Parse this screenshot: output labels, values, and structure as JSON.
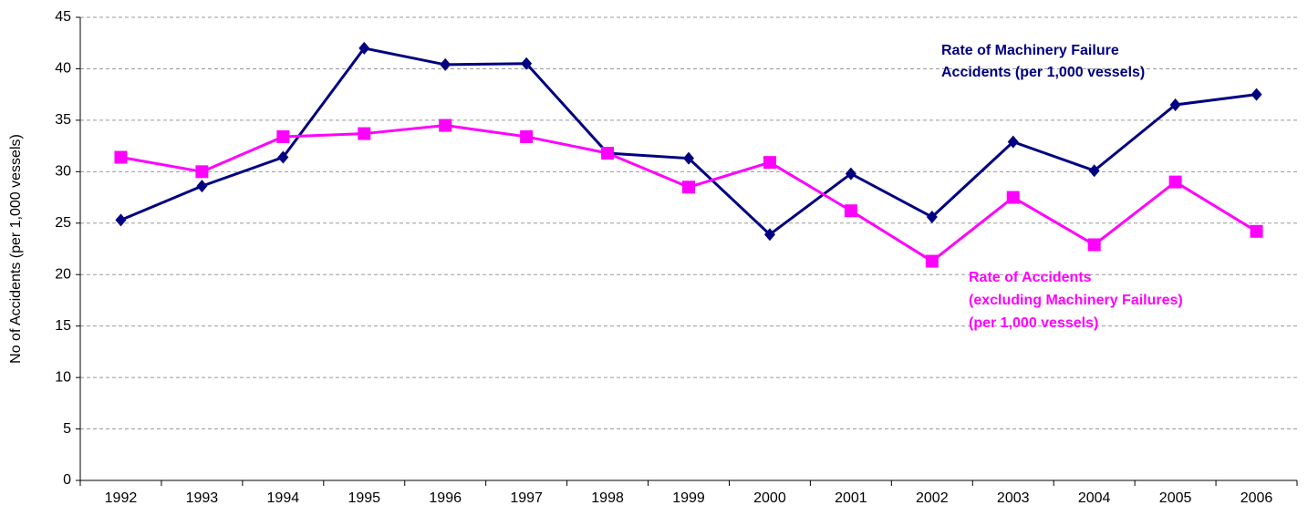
{
  "chart_data": {
    "type": "line",
    "y_label": "No of Accidents (per 1,000 vessels)",
    "categories": [
      "1992",
      "1993",
      "1994",
      "1995",
      "1996",
      "1997",
      "1998",
      "1999",
      "2000",
      "2001",
      "2002",
      "2003",
      "2004",
      "2005",
      "2006"
    ],
    "series": [
      {
        "label_lines": [
          "Rate of Machinery Failure",
          "Accidents (per 1,000 vessels)"
        ],
        "color": "#000080",
        "marker": "diamond",
        "values": [
          25.3,
          28.6,
          31.4,
          42.0,
          40.4,
          40.5,
          31.8,
          31.3,
          23.9,
          29.8,
          25.6,
          32.9,
          30.1,
          36.5,
          37.5
        ]
      },
      {
        "label_lines": [
          "Rate of Accidents",
          "(excluding Machinery Failures)",
          "(per 1,000 vessels)"
        ],
        "color": "#ff00ff",
        "marker": "square",
        "values": [
          31.4,
          30.0,
          33.4,
          33.7,
          34.5,
          33.4,
          31.8,
          28.5,
          30.9,
          26.2,
          21.3,
          27.5,
          22.9,
          29.0,
          24.2
        ]
      }
    ],
    "ylim": [
      0,
      45
    ],
    "yticks": [
      0,
      5,
      10,
      15,
      20,
      25,
      30,
      35,
      40,
      45
    ],
    "grid": true
  }
}
